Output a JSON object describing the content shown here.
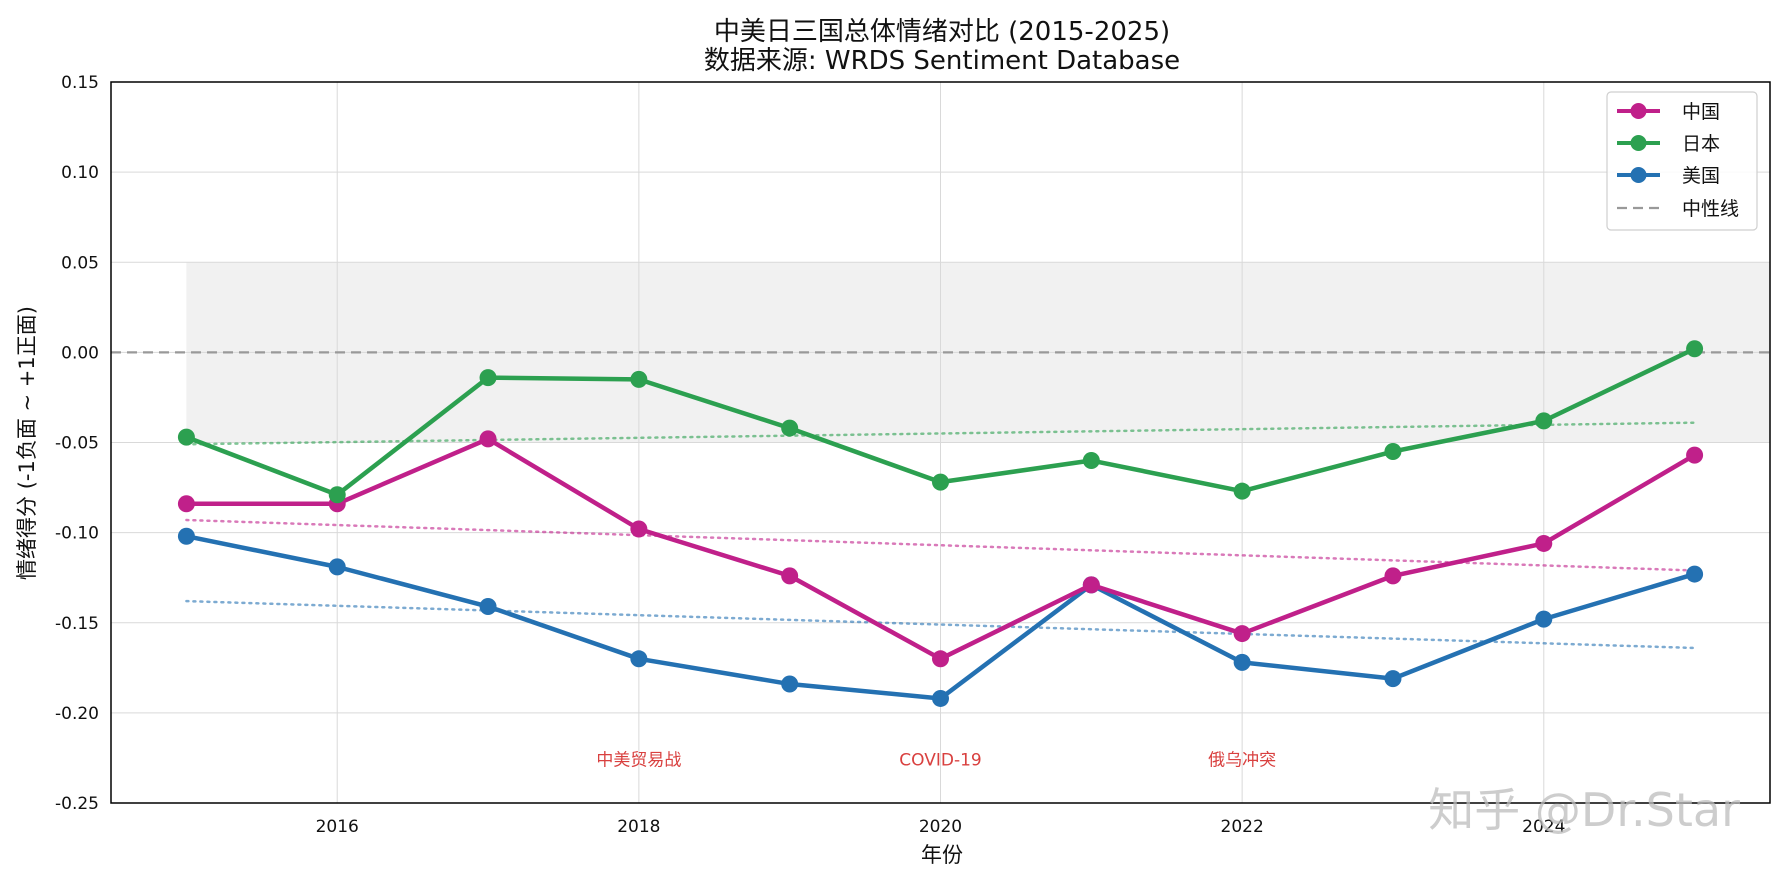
{
  "chart_data": {
    "type": "line",
    "title": "中美日三国总体情绪对比 (2015-2025)",
    "subtitle": "数据来源: WRDS Sentiment Database",
    "xlabel": "年份",
    "ylabel": "情绪得分 (-1负面 ~ +1正面)",
    "x": [
      2015,
      2016,
      2017,
      2018,
      2019,
      2020,
      2021,
      2022,
      2023,
      2024,
      2025
    ],
    "xlim": [
      2014.5,
      2025.5
    ],
    "ylim": [
      -0.25,
      0.15
    ],
    "xticks": [
      "2016",
      "2018",
      "2020",
      "2022",
      "2024"
    ],
    "yticks": [
      "0.15",
      "0.10",
      "0.05",
      "0.00",
      "-0.05",
      "-0.10",
      "-0.15",
      "-0.20",
      "-0.25"
    ],
    "grid": true,
    "legend_position": "top-right",
    "neutral_band": [
      -0.05,
      0.05
    ],
    "neutral_line": {
      "name": "中性线",
      "value": 0.0,
      "color": "#999999"
    },
    "series": [
      {
        "name": "中国",
        "color": "#c0208a",
        "values": [
          -0.084,
          -0.084,
          -0.048,
          -0.098,
          -0.124,
          -0.17,
          -0.129,
          -0.156,
          -0.124,
          -0.106,
          -0.057
        ],
        "trend": [
          -0.093,
          -0.121
        ]
      },
      {
        "name": "日本",
        "color": "#2ca050",
        "values": [
          -0.047,
          -0.079,
          -0.014,
          -0.015,
          -0.042,
          -0.072,
          -0.06,
          -0.077,
          -0.055,
          -0.038,
          0.002
        ],
        "trend": [
          -0.051,
          -0.039
        ]
      },
      {
        "name": "美国",
        "color": "#2471b2",
        "values": [
          -0.102,
          -0.119,
          -0.141,
          -0.17,
          -0.184,
          -0.192,
          -0.129,
          -0.172,
          -0.181,
          -0.148,
          -0.123
        ],
        "trend": [
          -0.138,
          -0.164
        ]
      }
    ],
    "annotations": [
      {
        "text": "中美贸易战",
        "x": 2018,
        "y": -0.226
      },
      {
        "text": "COVID-19",
        "x": 2020,
        "y": -0.226
      },
      {
        "text": "俄乌冲突",
        "x": 2022,
        "y": -0.226
      }
    ]
  },
  "watermark": "知乎 @Dr.Star"
}
